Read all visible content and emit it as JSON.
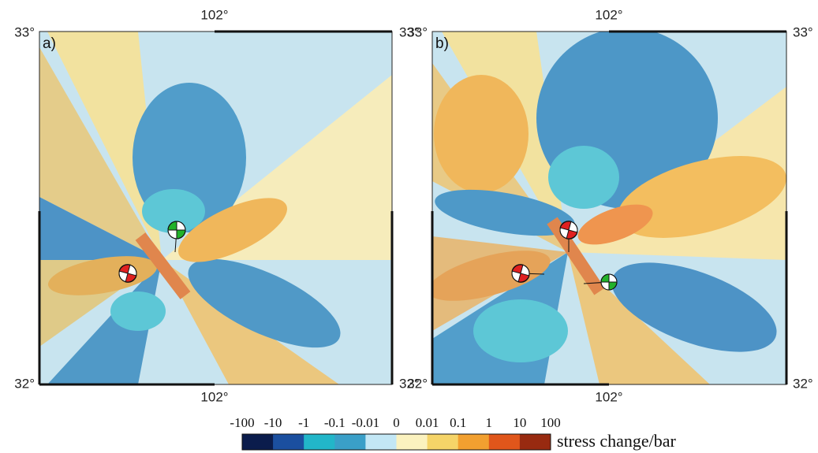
{
  "panels": [
    {
      "label": "a)",
      "lon_top": "102°",
      "lon_bottom": "102°",
      "lat_top_left": "33°",
      "lat_top_right": "33°",
      "lat_bottom_left": "32°",
      "lat_bottom_right": "32°"
    },
    {
      "label": "b)",
      "lon_top": "102°",
      "lon_bottom": "102°",
      "lat_top_left": "33°",
      "lat_top_right": "33°",
      "lat_bottom_left": "32°",
      "lat_bottom_right": "32°"
    }
  ],
  "colorbar": {
    "ticks": [
      -100,
      -10,
      -1,
      -0.1,
      -0.01,
      0,
      0.01,
      0.1,
      1,
      10,
      100
    ],
    "colors": [
      "#0b1c4c",
      "#1b4f9f",
      "#22b6c9",
      "#3a9fc8",
      "#c3e7f5",
      "#fbf2bf",
      "#f5d468",
      "#f2a030",
      "#e0561b",
      "#982a10"
    ],
    "title": "stress change/bar"
  }
}
